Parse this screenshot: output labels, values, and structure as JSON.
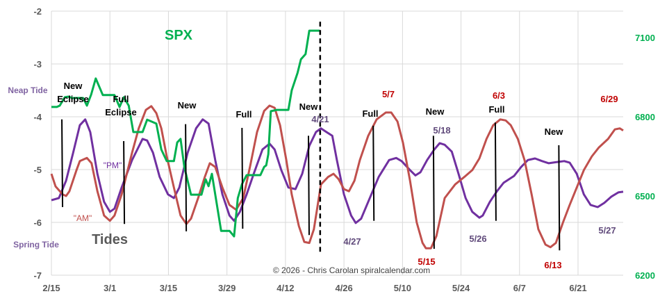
{
  "chart_data": {
    "type": "line",
    "title": "",
    "x_unit": "days since 2/15",
    "x_tick_labels": [
      "2/15",
      "3/1",
      "3/15",
      "3/29",
      "4/12",
      "4/26",
      "5/10",
      "5/24",
      "6/7",
      "6/21"
    ],
    "x_tick_days": [
      0,
      14,
      28,
      42,
      56,
      70,
      84,
      98,
      112,
      126
    ],
    "xlim": [
      0,
      136.8
    ],
    "ylim": [
      -7,
      -2
    ],
    "y_ticks": [
      -2,
      -3,
      -4,
      -5,
      -6,
      -7
    ],
    "y2lim": [
      6200,
      7200
    ],
    "y2_ticks": [
      7100,
      6800,
      6500,
      6200
    ],
    "grid": true,
    "colors": {
      "pm": "#7030a0",
      "am": "#c0504d",
      "spx": "#00b050"
    },
    "series": [
      {
        "name": "\"PM\"",
        "axis": "left",
        "points": [
          [
            0,
            -5.58
          ],
          [
            1.8,
            -5.54
          ],
          [
            3.5,
            -5.21
          ],
          [
            5.2,
            -4.68
          ],
          [
            6.8,
            -4.16
          ],
          [
            8.1,
            -4.05
          ],
          [
            9.3,
            -4.29
          ],
          [
            11,
            -5.08
          ],
          [
            12.6,
            -5.61
          ],
          [
            14,
            -5.8
          ],
          [
            15.1,
            -5.74
          ],
          [
            16.8,
            -5.34
          ],
          [
            19.3,
            -4.82
          ],
          [
            21.8,
            -4.42
          ],
          [
            22.9,
            -4.45
          ],
          [
            24.3,
            -4.68
          ],
          [
            25.9,
            -5.14
          ],
          [
            27.9,
            -5.47
          ],
          [
            29.3,
            -5.54
          ],
          [
            30.6,
            -5.34
          ],
          [
            32.6,
            -4.68
          ],
          [
            34.6,
            -4.22
          ],
          [
            36.2,
            -4.05
          ],
          [
            37.6,
            -4.13
          ],
          [
            39.2,
            -4.82
          ],
          [
            40.9,
            -5.47
          ],
          [
            42.6,
            -5.87
          ],
          [
            43.7,
            -5.97
          ],
          [
            45.1,
            -5.8
          ],
          [
            46.7,
            -5.47
          ],
          [
            48.4,
            -5.08
          ],
          [
            50.5,
            -4.62
          ],
          [
            52.2,
            -4.51
          ],
          [
            53.4,
            -4.62
          ],
          [
            55,
            -5.01
          ],
          [
            56.7,
            -5.34
          ],
          [
            58.4,
            -5.37
          ],
          [
            60,
            -5.08
          ],
          [
            61.7,
            -4.55
          ],
          [
            63.3,
            -4.29
          ],
          [
            64.5,
            -4.22
          ],
          [
            65.8,
            -4.29
          ],
          [
            67.2,
            -4.36
          ],
          [
            68.3,
            -4.82
          ],
          [
            70,
            -5.47
          ],
          [
            71.7,
            -5.87
          ],
          [
            72.8,
            -6.01
          ],
          [
            74.1,
            -5.93
          ],
          [
            75.8,
            -5.61
          ],
          [
            78.3,
            -5.14
          ],
          [
            80.8,
            -4.82
          ],
          [
            82.5,
            -4.78
          ],
          [
            83.8,
            -4.84
          ],
          [
            85.8,
            -5.01
          ],
          [
            87.1,
            -5.11
          ],
          [
            88.3,
            -5.05
          ],
          [
            89.9,
            -4.82
          ],
          [
            91.6,
            -4.62
          ],
          [
            92.9,
            -4.5
          ],
          [
            94.1,
            -4.53
          ],
          [
            95.8,
            -4.66
          ],
          [
            97.4,
            -5.08
          ],
          [
            99.1,
            -5.54
          ],
          [
            100.7,
            -5.8
          ],
          [
            102.4,
            -5.91
          ],
          [
            103.2,
            -5.87
          ],
          [
            104.9,
            -5.61
          ],
          [
            106.6,
            -5.41
          ],
          [
            108.2,
            -5.25
          ],
          [
            110.7,
            -5.12
          ],
          [
            112.4,
            -4.95
          ],
          [
            114,
            -4.82
          ],
          [
            115.7,
            -4.79
          ],
          [
            117.4,
            -4.84
          ],
          [
            119,
            -4.88
          ],
          [
            120.7,
            -4.86
          ],
          [
            122.7,
            -4.84
          ],
          [
            124,
            -4.87
          ],
          [
            125.7,
            -5.08
          ],
          [
            127.4,
            -5.47
          ],
          [
            129,
            -5.67
          ],
          [
            130.7,
            -5.71
          ],
          [
            132.3,
            -5.63
          ],
          [
            134,
            -5.51
          ],
          [
            135.7,
            -5.43
          ],
          [
            136.8,
            -5.42
          ]
        ]
      },
      {
        "name": "\"AM\"",
        "axis": "left",
        "points": [
          [
            0,
            -5.08
          ],
          [
            1,
            -5.32
          ],
          [
            2.7,
            -5.47
          ],
          [
            3.5,
            -5.5
          ],
          [
            4.3,
            -5.41
          ],
          [
            6,
            -5.01
          ],
          [
            6.8,
            -4.84
          ],
          [
            8.5,
            -4.78
          ],
          [
            9.6,
            -4.88
          ],
          [
            11,
            -5.41
          ],
          [
            12.6,
            -5.87
          ],
          [
            14,
            -5.97
          ],
          [
            15.1,
            -5.87
          ],
          [
            16.8,
            -5.47
          ],
          [
            19.3,
            -4.68
          ],
          [
            20.9,
            -4.22
          ],
          [
            22.6,
            -3.87
          ],
          [
            23.9,
            -3.8
          ],
          [
            25.1,
            -3.93
          ],
          [
            26.3,
            -4.22
          ],
          [
            27.6,
            -4.75
          ],
          [
            29.3,
            -5.34
          ],
          [
            30.9,
            -5.87
          ],
          [
            32.3,
            -6.03
          ],
          [
            33.4,
            -5.93
          ],
          [
            35.1,
            -5.54
          ],
          [
            36.7,
            -5.14
          ],
          [
            37.9,
            -4.88
          ],
          [
            39.2,
            -4.95
          ],
          [
            40.9,
            -5.34
          ],
          [
            42.6,
            -5.67
          ],
          [
            44.2,
            -5.76
          ],
          [
            45.9,
            -5.54
          ],
          [
            47.5,
            -4.95
          ],
          [
            49.2,
            -4.29
          ],
          [
            50.9,
            -3.89
          ],
          [
            52.2,
            -3.79
          ],
          [
            53.4,
            -3.83
          ],
          [
            54.7,
            -4.16
          ],
          [
            56.2,
            -4.82
          ],
          [
            57.5,
            -5.47
          ],
          [
            59.2,
            -6.07
          ],
          [
            60.5,
            -6.37
          ],
          [
            61.7,
            -6.39
          ],
          [
            62.8,
            -6.13
          ],
          [
            64.5,
            -5.28
          ],
          [
            66.2,
            -5.14
          ],
          [
            67.5,
            -5.08
          ],
          [
            68.7,
            -5.18
          ],
          [
            70,
            -5.37
          ],
          [
            71.2,
            -5.41
          ],
          [
            72.5,
            -5.21
          ],
          [
            73.8,
            -4.82
          ],
          [
            75.8,
            -4.36
          ],
          [
            77.8,
            -4.05
          ],
          [
            80,
            -3.92
          ],
          [
            81.3,
            -3.92
          ],
          [
            82.8,
            -4.09
          ],
          [
            84.1,
            -4.49
          ],
          [
            85.8,
            -5.21
          ],
          [
            87.4,
            -6
          ],
          [
            88.8,
            -6.39
          ],
          [
            89.6,
            -6.49
          ],
          [
            90.8,
            -6.49
          ],
          [
            92.1,
            -6.26
          ],
          [
            94.1,
            -5.54
          ],
          [
            96.6,
            -5.28
          ],
          [
            98.8,
            -5.14
          ],
          [
            100.7,
            -5.01
          ],
          [
            102.4,
            -4.79
          ],
          [
            104.1,
            -4.42
          ],
          [
            105.7,
            -4.16
          ],
          [
            107.4,
            -4.05
          ],
          [
            108.7,
            -4.07
          ],
          [
            109.9,
            -4.16
          ],
          [
            111.6,
            -4.42
          ],
          [
            113.2,
            -4.82
          ],
          [
            114.9,
            -5.47
          ],
          [
            116.5,
            -6.13
          ],
          [
            118.2,
            -6.42
          ],
          [
            119.4,
            -6.47
          ],
          [
            120.7,
            -6.39
          ],
          [
            122.4,
            -6
          ],
          [
            124,
            -5.67
          ],
          [
            125.7,
            -5.34
          ],
          [
            127.4,
            -5.01
          ],
          [
            129.3,
            -4.75
          ],
          [
            131,
            -4.58
          ],
          [
            133.2,
            -4.42
          ],
          [
            134.8,
            -4.24
          ],
          [
            136,
            -4.22
          ],
          [
            136.8,
            -4.26
          ]
        ]
      },
      {
        "name": "SPX",
        "axis": "right",
        "points": [
          [
            0,
            6837
          ],
          [
            1.3,
            6837
          ],
          [
            2,
            6842
          ],
          [
            3.2,
            6874
          ],
          [
            4,
            6876
          ],
          [
            5,
            6871
          ],
          [
            7.6,
            6871
          ],
          [
            8.5,
            6842
          ],
          [
            9.5,
            6884
          ],
          [
            10.6,
            6945
          ],
          [
            12.3,
            6882
          ],
          [
            15.1,
            6882
          ],
          [
            16.3,
            6837
          ],
          [
            17.3,
            6874
          ],
          [
            18.5,
            6842
          ],
          [
            19.6,
            6742
          ],
          [
            21.8,
            6742
          ],
          [
            22.9,
            6789
          ],
          [
            23.9,
            6782
          ],
          [
            25.1,
            6774
          ],
          [
            26.3,
            6676
          ],
          [
            27.6,
            6632
          ],
          [
            29.3,
            6632
          ],
          [
            30.1,
            6703
          ],
          [
            30.9,
            6716
          ],
          [
            31.8,
            6610
          ],
          [
            33.4,
            6505
          ],
          [
            35.9,
            6505
          ],
          [
            36.9,
            6563
          ],
          [
            37.6,
            6537
          ],
          [
            38.4,
            6584
          ],
          [
            40.6,
            6368
          ],
          [
            42.6,
            6368
          ],
          [
            43.7,
            6347
          ],
          [
            44.6,
            6492
          ],
          [
            45.6,
            6545
          ],
          [
            46.7,
            6579
          ],
          [
            50,
            6579
          ],
          [
            50.9,
            6610
          ],
          [
            51.4,
            6616
          ],
          [
            51.9,
            6658
          ],
          [
            52.5,
            6821
          ],
          [
            53.9,
            6826
          ],
          [
            56.7,
            6826
          ],
          [
            57.5,
            6900
          ],
          [
            58.9,
            6966
          ],
          [
            59.7,
            7018
          ],
          [
            60.8,
            7037
          ],
          [
            61.7,
            7126
          ],
          [
            64.2,
            7126
          ]
        ]
      }
    ],
    "phase_markers": [
      {
        "day": 2.5,
        "from": -4.05,
        "to": -5.71
      },
      {
        "day": 17.3,
        "from": -4.46,
        "to": -6.03
      },
      {
        "day": 32.1,
        "from": -4.14,
        "to": -6.17
      },
      {
        "day": 45.6,
        "from": -4.21,
        "to": -6.12
      },
      {
        "day": 61.5,
        "from": -4.36,
        "to": -6.24
      },
      {
        "day": 77.0,
        "from": -4.17,
        "to": -5.97
      },
      {
        "day": 91.4,
        "from": -4.36,
        "to": -6.5
      },
      {
        "day": 106.2,
        "from": -4.11,
        "to": -5.97
      },
      {
        "day": 121.4,
        "from": -4.54,
        "to": -6.53
      }
    ],
    "today_marker": {
      "day": 64.3,
      "from": -2.2,
      "to": -6.58
    },
    "annotations": {
      "spx": "SPX",
      "neap_tide": "Neap Tide",
      "spring_tide": "Spring Tide",
      "tides": "Tides",
      "pm": "\"PM\"",
      "am": "\"AM\"",
      "new_eclipse_1": "New",
      "new_eclipse_2": "Eclipse",
      "full_eclipse_1": "Full",
      "full_eclipse_2": "Eclipse",
      "new_3_15": "New",
      "full_3_29": "Full",
      "new_4_12": "New",
      "d_4_21": "4/21",
      "full_5_1": "Full",
      "d_5_7": "5/7",
      "new_5_16": "New",
      "d_5_18": "5/18",
      "d_6_3": "6/3",
      "full_5_31": "Full",
      "new_6_15": "New",
      "d_6_29": "6/29",
      "d_4_27": "4/27",
      "d_5_15": "5/15",
      "d_5_26": "5/26",
      "d_6_13": "6/13",
      "d_5_27": "5/27",
      "copyright": "©  2026 - Chris Carolan  spiralcalendar.com"
    }
  }
}
